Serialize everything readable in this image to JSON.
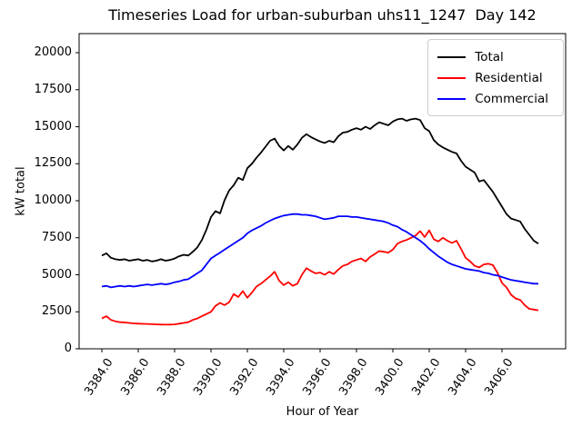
{
  "chart_data": {
    "type": "line",
    "title": "Timeseries Load for urban-suburban uhs11_1247  Day 142",
    "xlabel": "Hour of Year",
    "ylabel": "kW total",
    "grid": false,
    "legend_position": "upper right",
    "xlim": [
      3382.75,
      3409.5
    ],
    "ylim": [
      0,
      21290
    ],
    "xticks": {
      "values": [
        3384,
        3386,
        3388,
        3390,
        3392,
        3394,
        3396,
        3398,
        3400,
        3402,
        3404,
        3406
      ],
      "labels": [
        "3384.0",
        "3386.0",
        "3388.0",
        "3390.0",
        "3392.0",
        "3394.0",
        "3396.0",
        "3398.0",
        "3400.0",
        "3402.0",
        "3404.0",
        "3406.0"
      ]
    },
    "yticks": {
      "values": [
        0,
        2500,
        5000,
        7500,
        10000,
        12500,
        15000,
        17500,
        20000
      ],
      "labels": [
        "0",
        "2500",
        "5000",
        "7500",
        "10000",
        "12500",
        "15000",
        "17500",
        "20000"
      ]
    },
    "x": [
      3384.0,
      3384.25,
      3384.5,
      3384.75,
      3385.0,
      3385.25,
      3385.5,
      3385.75,
      3386.0,
      3386.25,
      3386.5,
      3386.75,
      3387.0,
      3387.25,
      3387.5,
      3387.75,
      3388.0,
      3388.25,
      3388.5,
      3388.75,
      3389.0,
      3389.25,
      3389.5,
      3389.75,
      3390.0,
      3390.25,
      3390.5,
      3390.75,
      3391.0,
      3391.25,
      3391.5,
      3391.75,
      3392.0,
      3392.25,
      3392.5,
      3392.75,
      3393.0,
      3393.25,
      3393.5,
      3393.75,
      3394.0,
      3394.25,
      3394.5,
      3394.75,
      3395.0,
      3395.25,
      3395.5,
      3395.75,
      3396.0,
      3396.25,
      3396.5,
      3396.75,
      3397.0,
      3397.25,
      3397.5,
      3397.75,
      3398.0,
      3398.25,
      3398.5,
      3398.75,
      3399.0,
      3399.25,
      3399.5,
      3399.75,
      3400.0,
      3400.25,
      3400.5,
      3400.75,
      3401.0,
      3401.25,
      3401.5,
      3401.75,
      3402.0,
      3402.25,
      3402.5,
      3402.75,
      3403.0,
      3403.25,
      3403.5,
      3403.75,
      3404.0,
      3404.25,
      3404.5,
      3404.75,
      3405.0,
      3405.25,
      3405.5,
      3405.75,
      3406.0,
      3406.25,
      3406.5,
      3406.75,
      3407.0,
      3407.25,
      3407.5,
      3407.75,
      3408.0
    ],
    "series": [
      {
        "name": "Total",
        "color": "#000000",
        "values": [
          6300,
          6450,
          6150,
          6050,
          6000,
          6050,
          5950,
          6000,
          6050,
          5950,
          6000,
          5900,
          5950,
          6050,
          5950,
          6000,
          6100,
          6250,
          6350,
          6300,
          6550,
          6850,
          7350,
          8050,
          8900,
          9300,
          9150,
          10050,
          10700,
          11050,
          11550,
          11400,
          12200,
          12500,
          12900,
          13250,
          13650,
          14050,
          14200,
          13700,
          13400,
          13700,
          13450,
          13800,
          14250,
          14500,
          14300,
          14150,
          14000,
          13900,
          14050,
          13950,
          14350,
          14600,
          14650,
          14800,
          14900,
          14800,
          15000,
          14850,
          15100,
          15300,
          15200,
          15100,
          15350,
          15500,
          15550,
          15400,
          15500,
          15550,
          15450,
          14900,
          14700,
          14100,
          13800,
          13600,
          13450,
          13300,
          13200,
          12700,
          12300,
          12100,
          11900,
          11300,
          11400,
          11000,
          10600,
          10100,
          9600,
          9100,
          8800,
          8700,
          8600,
          8100,
          7700,
          7300,
          7100
        ]
      },
      {
        "name": "Residential",
        "color": "#ff0000",
        "values": [
          2050,
          2200,
          1950,
          1850,
          1800,
          1780,
          1750,
          1720,
          1700,
          1690,
          1680,
          1660,
          1650,
          1640,
          1630,
          1640,
          1650,
          1700,
          1750,
          1800,
          1950,
          2050,
          2200,
          2350,
          2500,
          2900,
          3100,
          2950,
          3150,
          3700,
          3500,
          3900,
          3450,
          3800,
          4200,
          4400,
          4650,
          4900,
          5200,
          4600,
          4300,
          4500,
          4250,
          4400,
          5000,
          5450,
          5250,
          5100,
          5150,
          5000,
          5200,
          5050,
          5350,
          5600,
          5700,
          5900,
          6000,
          6100,
          5900,
          6200,
          6400,
          6600,
          6550,
          6500,
          6700,
          7100,
          7250,
          7350,
          7500,
          7650,
          7950,
          7550,
          8000,
          7400,
          7250,
          7500,
          7300,
          7150,
          7300,
          6750,
          6150,
          5900,
          5600,
          5500,
          5700,
          5750,
          5650,
          5150,
          4450,
          4150,
          3650,
          3400,
          3300,
          2950,
          2700,
          2650,
          2600
        ]
      },
      {
        "name": "Commercial",
        "color": "#0000ff",
        "values": [
          4200,
          4250,
          4150,
          4200,
          4250,
          4200,
          4250,
          4200,
          4250,
          4300,
          4350,
          4300,
          4350,
          4400,
          4350,
          4400,
          4500,
          4550,
          4650,
          4700,
          4900,
          5100,
          5300,
          5700,
          6100,
          6300,
          6500,
          6700,
          6900,
          7100,
          7300,
          7500,
          7800,
          8000,
          8150,
          8300,
          8500,
          8650,
          8800,
          8900,
          9000,
          9050,
          9100,
          9100,
          9050,
          9050,
          9000,
          8950,
          8850,
          8750,
          8800,
          8850,
          8950,
          8950,
          8950,
          8900,
          8900,
          8850,
          8800,
          8750,
          8700,
          8650,
          8600,
          8500,
          8350,
          8250,
          8050,
          7900,
          7700,
          7500,
          7300,
          7050,
          6750,
          6500,
          6250,
          6050,
          5850,
          5700,
          5600,
          5500,
          5400,
          5350,
          5300,
          5250,
          5150,
          5100,
          5000,
          4950,
          4850,
          4750,
          4650,
          4600,
          4550,
          4500,
          4450,
          4400,
          4400
        ]
      }
    ]
  }
}
